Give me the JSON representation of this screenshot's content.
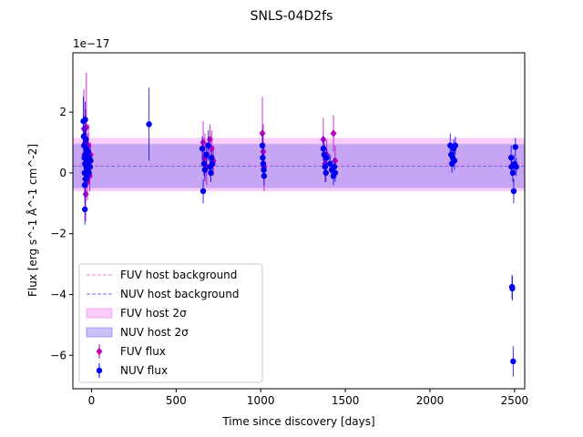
{
  "chart_data": {
    "type": "scatter",
    "title": "SNLS-04D2fs",
    "xlabel": "Time since discovery [days]",
    "ylabel": "Flux [erg s^-1 Å^-1 cm^-2]",
    "y_offset_label": "1e−17",
    "xlim": [
      -110,
      2560
    ],
    "ylim": [
      -7.1,
      3.95
    ],
    "y_scale_factor": 1e-17,
    "xticks": [
      0,
      500,
      1000,
      1500,
      2000,
      2500
    ],
    "yticks": [
      -6,
      -4,
      -2,
      0,
      2
    ],
    "xtick_labels": [
      "0",
      "500",
      "1000",
      "1500",
      "2000",
      "2500"
    ],
    "ytick_labels": [
      "−6",
      "−4",
      "−2",
      "0",
      "2"
    ],
    "grid": false,
    "legend_position": "lower-left",
    "legend": [
      {
        "label": "FUV host background",
        "kind": "dashed-line",
        "color": "#ee82ee"
      },
      {
        "label": "NUV host background",
        "kind": "dashed-line",
        "color": "#7b68ee"
      },
      {
        "label": "FUV host 2σ",
        "kind": "band",
        "color": "#ee82ee"
      },
      {
        "label": "NUV host 2σ",
        "kind": "band",
        "color": "#7b68ee"
      },
      {
        "label": "FUV flux",
        "kind": "diamond-errorbar",
        "color": "#bf00bf"
      },
      {
        "label": "NUV flux",
        "kind": "circle-errorbar",
        "color": "#0000ee"
      }
    ],
    "host": {
      "fuv_background": 0.3,
      "nuv_background": 0.22,
      "fuv_band": [
        -0.6,
        1.15
      ],
      "nuv_band": [
        -0.5,
        0.95
      ]
    },
    "series": [
      {
        "name": "FUV flux",
        "marker": "diamond",
        "color": "#bf00bf",
        "points": [
          {
            "x": -45,
            "y": 1.45,
            "err": 1.3
          },
          {
            "x": -42,
            "y": 0.6,
            "err": 0.8
          },
          {
            "x": -40,
            "y": 0.3,
            "err": 0.7
          },
          {
            "x": -38,
            "y": -0.2,
            "err": 0.8
          },
          {
            "x": -36,
            "y": 1.0,
            "err": 1.1
          },
          {
            "x": -34,
            "y": -0.7,
            "err": 0.9
          },
          {
            "x": -32,
            "y": 0.8,
            "err": 0.8
          },
          {
            "x": -30,
            "y": 1.5,
            "err": 1.8
          },
          {
            "x": -28,
            "y": 0.2,
            "err": 0.6
          },
          {
            "x": -26,
            "y": 0.5,
            "err": 0.7
          },
          {
            "x": -24,
            "y": -0.3,
            "err": 0.6
          },
          {
            "x": -22,
            "y": 0.7,
            "err": 0.6
          },
          {
            "x": -20,
            "y": 0.1,
            "err": 0.5
          },
          {
            "x": -18,
            "y": 0.9,
            "err": 0.7
          },
          {
            "x": -10,
            "y": -0.1,
            "err": 0.5
          },
          {
            "x": -5,
            "y": 0.6,
            "err": 0.4
          },
          {
            "x": 660,
            "y": 1.0,
            "err": 0.7
          },
          {
            "x": 670,
            "y": 0.5,
            "err": 0.8
          },
          {
            "x": 680,
            "y": 0.2,
            "err": 0.6
          },
          {
            "x": 700,
            "y": 1.1,
            "err": 0.5
          },
          {
            "x": 710,
            "y": 0.8,
            "err": 0.6
          },
          {
            "x": 720,
            "y": 0.4,
            "err": 0.5
          },
          {
            "x": 1010,
            "y": 1.3,
            "err": 1.2
          },
          {
            "x": 1015,
            "y": 0.7,
            "err": 0.9
          },
          {
            "x": 1020,
            "y": 0.2,
            "err": 0.8
          },
          {
            "x": 1370,
            "y": 1.1,
            "err": 0.7
          },
          {
            "x": 1380,
            "y": 0.3,
            "err": 0.6
          },
          {
            "x": 1390,
            "y": 0.6,
            "err": 0.5
          },
          {
            "x": 1430,
            "y": 1.3,
            "err": 0.6
          },
          {
            "x": 1440,
            "y": 0.4,
            "err": 0.5
          }
        ]
      },
      {
        "name": "NUV flux",
        "marker": "circle",
        "color": "#0000ee",
        "points": [
          {
            "x": -48,
            "y": 1.7,
            "err": 0.8
          },
          {
            "x": -46,
            "y": 1.2,
            "err": 0.7
          },
          {
            "x": -44,
            "y": 0.9,
            "err": 0.5
          },
          {
            "x": -42,
            "y": 0.5,
            "err": 0.4
          },
          {
            "x": -41,
            "y": 0.0,
            "err": 0.4
          },
          {
            "x": -40,
            "y": -0.4,
            "err": 0.4
          },
          {
            "x": -39,
            "y": -1.2,
            "err": 0.5
          },
          {
            "x": -38,
            "y": 0.3,
            "err": 0.3
          },
          {
            "x": -37,
            "y": 1.75,
            "err": 0.6
          },
          {
            "x": -36,
            "y": 0.6,
            "err": 0.3
          },
          {
            "x": -35,
            "y": -0.2,
            "err": 0.3
          },
          {
            "x": -33,
            "y": 1.1,
            "err": 0.4
          },
          {
            "x": -31,
            "y": 0.2,
            "err": 0.3
          },
          {
            "x": -29,
            "y": 0.8,
            "err": 0.3
          },
          {
            "x": -27,
            "y": -0.1,
            "err": 0.3
          },
          {
            "x": -25,
            "y": 0.4,
            "err": 0.3
          },
          {
            "x": -23,
            "y": 0.1,
            "err": 0.3
          },
          {
            "x": -21,
            "y": 0.7,
            "err": 0.3
          },
          {
            "x": -19,
            "y": 0.3,
            "err": 0.3
          },
          {
            "x": -15,
            "y": 0.0,
            "err": 0.3
          },
          {
            "x": -12,
            "y": 0.5,
            "err": 0.3
          },
          {
            "x": -8,
            "y": 0.2,
            "err": 0.3
          },
          {
            "x": -5,
            "y": 0.4,
            "err": 0.3
          },
          {
            "x": 340,
            "y": 1.6,
            "err": 1.2
          },
          {
            "x": 655,
            "y": 0.8,
            "err": 0.4
          },
          {
            "x": 660,
            "y": -0.6,
            "err": 0.4
          },
          {
            "x": 665,
            "y": 0.3,
            "err": 0.4
          },
          {
            "x": 670,
            "y": 0.1,
            "err": 0.3
          },
          {
            "x": 680,
            "y": 0.6,
            "err": 0.4
          },
          {
            "x": 690,
            "y": 0.9,
            "err": 0.5
          },
          {
            "x": 700,
            "y": 0.2,
            "err": 0.3
          },
          {
            "x": 705,
            "y": 0.0,
            "err": 0.3
          },
          {
            "x": 710,
            "y": 0.5,
            "err": 0.3
          },
          {
            "x": 715,
            "y": 0.3,
            "err": 0.3
          },
          {
            "x": 1010,
            "y": 0.9,
            "err": 0.4
          },
          {
            "x": 1012,
            "y": 0.5,
            "err": 0.4
          },
          {
            "x": 1015,
            "y": 0.3,
            "err": 0.3
          },
          {
            "x": 1018,
            "y": 0.1,
            "err": 0.3
          },
          {
            "x": 1020,
            "y": -0.1,
            "err": 0.3
          },
          {
            "x": 1370,
            "y": 0.8,
            "err": 0.4
          },
          {
            "x": 1375,
            "y": 0.6,
            "err": 0.4
          },
          {
            "x": 1380,
            "y": 0.2,
            "err": 0.3
          },
          {
            "x": 1385,
            "y": 0.0,
            "err": 0.3
          },
          {
            "x": 1390,
            "y": 0.5,
            "err": 0.3
          },
          {
            "x": 1410,
            "y": 0.3,
            "err": 0.3
          },
          {
            "x": 1420,
            "y": 0.1,
            "err": 0.3
          },
          {
            "x": 1430,
            "y": -0.1,
            "err": 0.3
          },
          {
            "x": 1435,
            "y": 0.2,
            "err": 0.3
          },
          {
            "x": 1440,
            "y": 0.0,
            "err": 0.3
          },
          {
            "x": 2120,
            "y": 0.9,
            "err": 0.4
          },
          {
            "x": 2125,
            "y": 0.6,
            "err": 0.4
          },
          {
            "x": 2130,
            "y": 0.3,
            "err": 0.3
          },
          {
            "x": 2135,
            "y": 0.5,
            "err": 0.3
          },
          {
            "x": 2140,
            "y": 0.8,
            "err": 0.3
          },
          {
            "x": 2145,
            "y": 0.4,
            "err": 0.3
          },
          {
            "x": 2150,
            "y": 0.9,
            "err": 0.3
          },
          {
            "x": 2480,
            "y": 0.5,
            "err": 0.4
          },
          {
            "x": 2482,
            "y": 0.2,
            "err": 0.3
          },
          {
            "x": 2485,
            "y": -3.75,
            "err": 0.4
          },
          {
            "x": 2487,
            "y": -3.8,
            "err": 0.4
          },
          {
            "x": 2490,
            "y": 0.0,
            "err": 0.3
          },
          {
            "x": 2492,
            "y": -6.2,
            "err": 0.5
          },
          {
            "x": 2495,
            "y": -0.6,
            "err": 0.4
          },
          {
            "x": 2500,
            "y": 0.3,
            "err": 0.3
          },
          {
            "x": 2505,
            "y": 0.85,
            "err": 0.3
          },
          {
            "x": 2510,
            "y": 0.2,
            "err": 0.3
          }
        ]
      }
    ]
  }
}
